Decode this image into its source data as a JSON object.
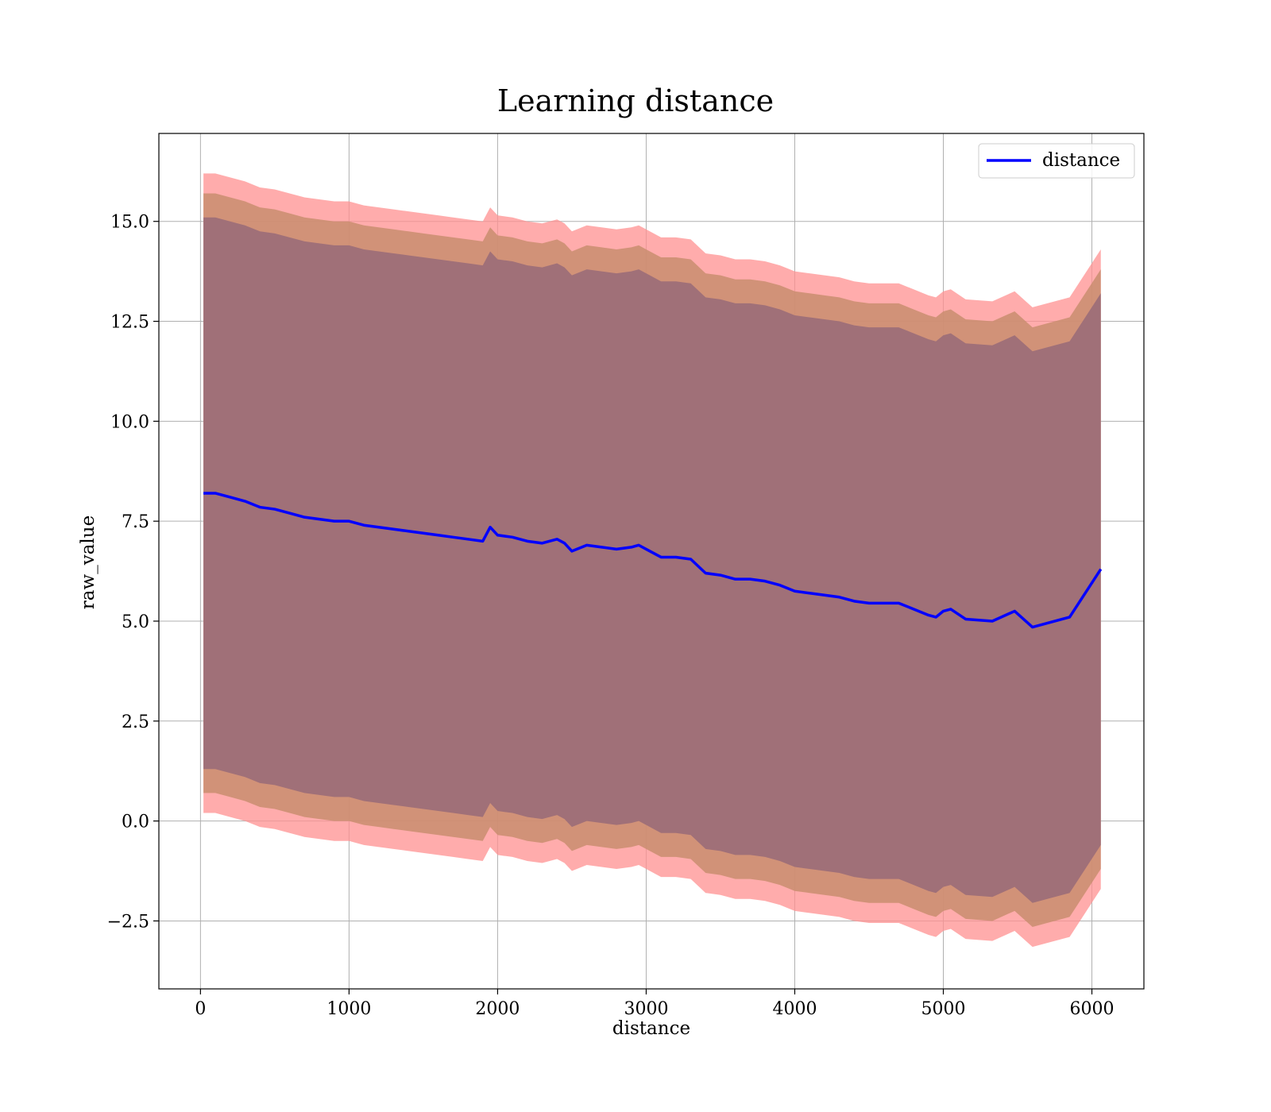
{
  "chart_data": {
    "type": "line",
    "title": "Learning distance",
    "xlabel": "distance",
    "ylabel": "raw_value",
    "xlim": [
      -280,
      6350
    ],
    "ylim": [
      -4.2,
      17.2
    ],
    "xticks": [
      0,
      1000,
      2000,
      3000,
      4000,
      5000,
      6000
    ],
    "xtick_labels": [
      "0",
      "1000",
      "2000",
      "3000",
      "4000",
      "5000",
      "6000"
    ],
    "yticks": [
      -2.5,
      0.0,
      2.5,
      5.0,
      7.5,
      10.0,
      12.5,
      15.0
    ],
    "ytick_labels": [
      "−2.5",
      "0.0",
      "2.5",
      "5.0",
      "7.5",
      "10.0",
      "12.5",
      "15.0"
    ],
    "grid": true,
    "legend_position": "top-right",
    "colors": {
      "line": "#0000ff",
      "band_outer": "#ff9090",
      "band_middle": "#c98d6e",
      "band_inner": "#a07078"
    },
    "series": [
      {
        "name": "distance",
        "x": [
          20,
          100,
          200,
          300,
          400,
          500,
          600,
          700,
          800,
          900,
          1000,
          1100,
          1200,
          1300,
          1400,
          1500,
          1600,
          1700,
          1800,
          1900,
          1950,
          2000,
          2100,
          2200,
          2300,
          2400,
          2450,
          2500,
          2600,
          2700,
          2800,
          2900,
          2950,
          3000,
          3100,
          3200,
          3300,
          3400,
          3500,
          3600,
          3700,
          3800,
          3900,
          4000,
          4100,
          4200,
          4300,
          4400,
          4500,
          4600,
          4700,
          4800,
          4900,
          4950,
          5000,
          5050,
          5150,
          5330,
          5480,
          5600,
          5850,
          6060
        ],
        "y": [
          8.2,
          8.2,
          8.1,
          8.0,
          7.85,
          7.8,
          7.7,
          7.6,
          7.55,
          7.5,
          7.5,
          7.4,
          7.35,
          7.3,
          7.25,
          7.2,
          7.15,
          7.1,
          7.05,
          7.0,
          7.35,
          7.15,
          7.1,
          7.0,
          6.95,
          7.05,
          6.95,
          6.75,
          6.9,
          6.85,
          6.8,
          6.85,
          6.9,
          6.8,
          6.6,
          6.6,
          6.55,
          6.2,
          6.15,
          6.05,
          6.05,
          6.0,
          5.9,
          5.75,
          5.7,
          5.65,
          5.6,
          5.5,
          5.45,
          5.45,
          5.45,
          5.3,
          5.15,
          5.1,
          5.25,
          5.3,
          5.05,
          5.0,
          5.25,
          4.85,
          5.1,
          6.3
        ]
      }
    ],
    "bands": [
      {
        "role": "outer",
        "offset_upper": 8.0,
        "offset_lower": 8.0
      },
      {
        "role": "middle",
        "offset_upper": 7.5,
        "offset_lower": 7.5
      },
      {
        "role": "inner",
        "offset_upper": 6.9,
        "offset_lower": 6.9
      }
    ]
  }
}
